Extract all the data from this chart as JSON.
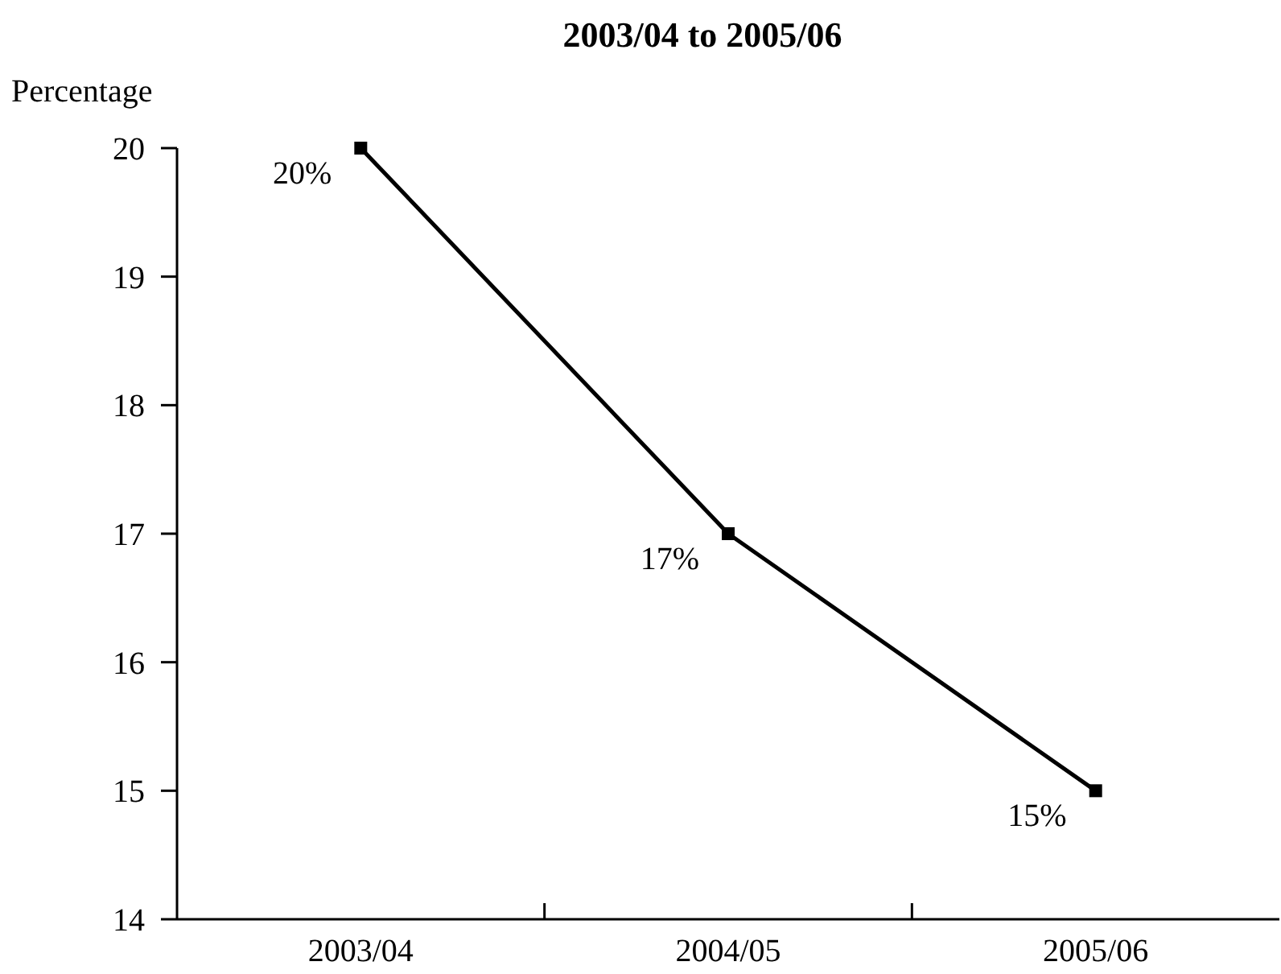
{
  "chart_data": {
    "type": "line",
    "title": "2003/04 to 2005/06",
    "ylabel": "Percentage",
    "categories": [
      "2003/04",
      "2004/05",
      "2005/06"
    ],
    "series": [
      {
        "color": "#000000",
        "values": [
          20,
          17,
          15
        ],
        "value_labels": [
          "20%",
          "17%",
          "15%"
        ]
      }
    ],
    "ylim": [
      14,
      20
    ],
    "yticks": [
      14,
      15,
      16,
      17,
      18,
      19,
      20
    ],
    "marker": "square",
    "line_style": "solid",
    "grid": false
  }
}
